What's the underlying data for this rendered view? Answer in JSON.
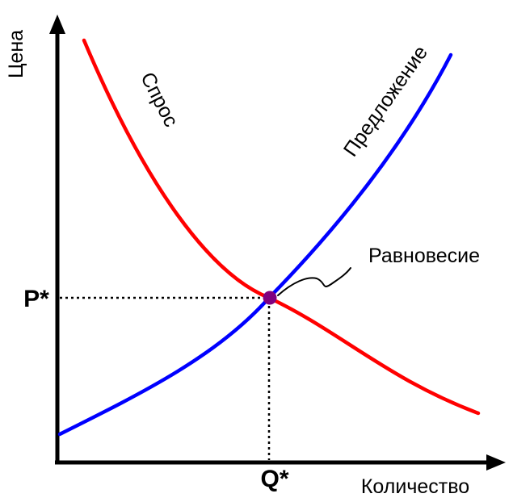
{
  "axes": {
    "y_label": "Цена",
    "x_label": "Количество",
    "color": "#000000"
  },
  "equilibrium": {
    "price_label": "P*",
    "quantity_label": "Q*",
    "label": "Равновесие",
    "point_color": "#800080"
  },
  "curves": {
    "demand": {
      "label": "Спрос",
      "color": "#ff0000"
    },
    "supply": {
      "label": "Предложение",
      "color": "#0000ff"
    }
  }
}
